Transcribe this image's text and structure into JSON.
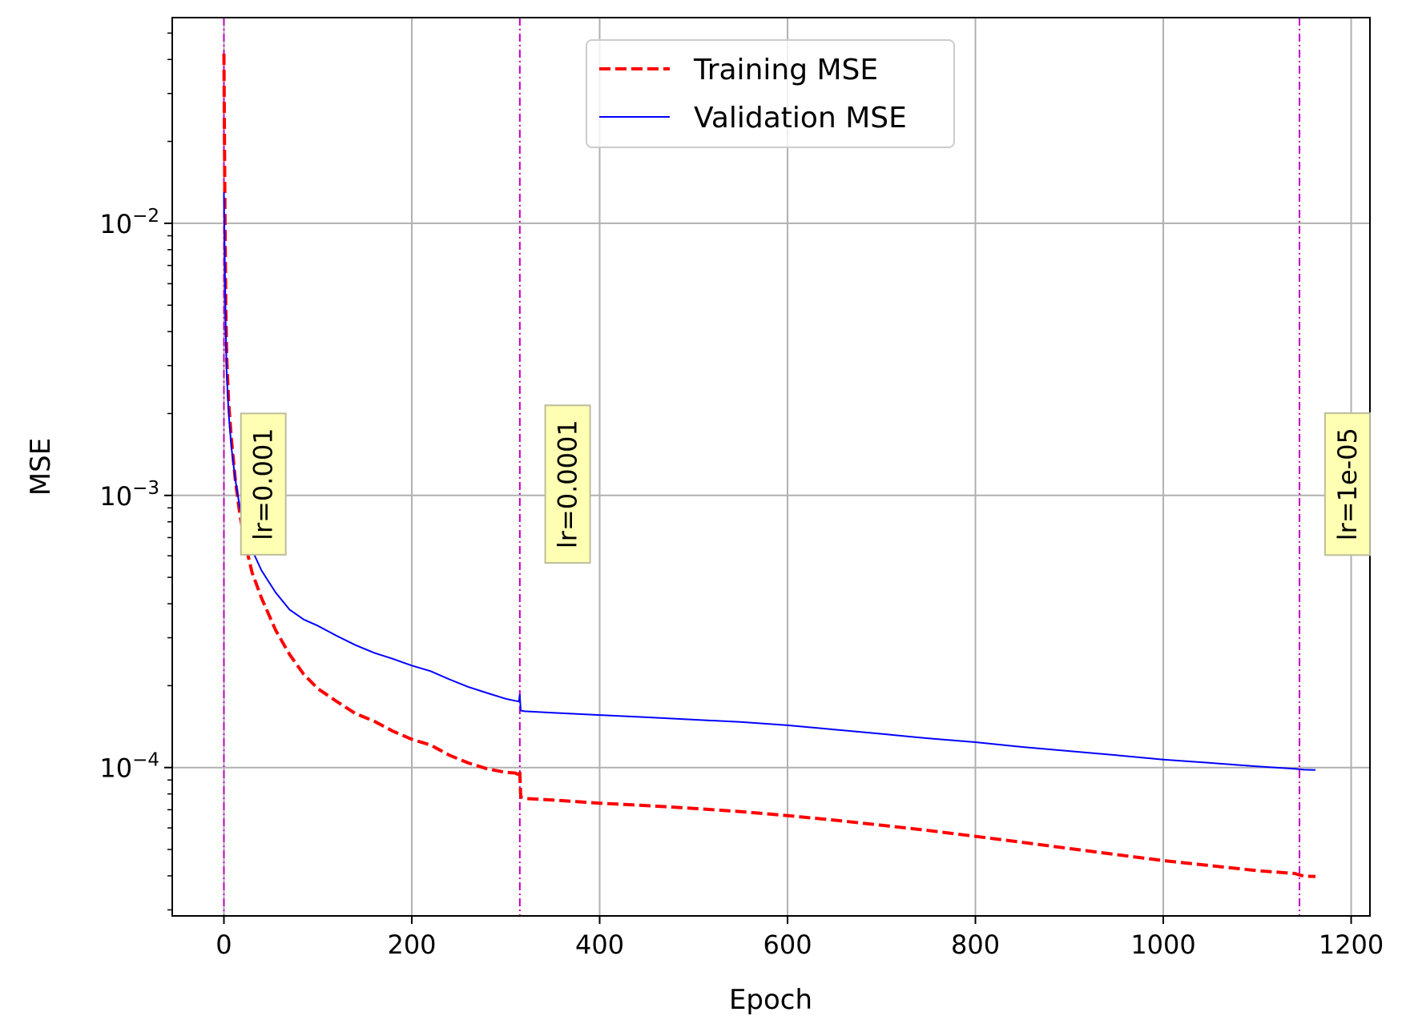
{
  "chart_data": {
    "type": "line",
    "xlabel": "Epoch",
    "ylabel": "MSE",
    "xlim": [
      -55,
      1220
    ],
    "ylim": [
      2.85e-05,
      0.057
    ],
    "yscale": "log",
    "grid": true,
    "legend_position": "top-center",
    "x_ticks": [
      0,
      200,
      400,
      600,
      800,
      1000,
      1200
    ],
    "x_tick_labels": [
      "0",
      "200",
      "400",
      "600",
      "800",
      "1000",
      "1200"
    ],
    "y_ticks": [
      0.0001,
      0.001,
      0.01
    ],
    "y_tick_labels": [
      {
        "base": "10",
        "exp": "−4"
      },
      {
        "base": "10",
        "exp": "−3"
      },
      {
        "base": "10",
        "exp": "−2"
      }
    ],
    "series": [
      {
        "name": "Training MSE",
        "color": "#ff0000",
        "style": "dashed",
        "x": [
          0,
          1,
          2,
          3,
          5,
          8,
          12,
          17,
          22,
          30,
          40,
          55,
          70,
          85,
          100,
          120,
          140,
          160,
          180,
          200,
          220,
          240,
          260,
          280,
          300,
          310,
          314,
          315,
          316,
          320,
          350,
          400,
          450,
          500,
          550,
          600,
          650,
          700,
          750,
          800,
          850,
          900,
          950,
          1000,
          1050,
          1100,
          1140,
          1145,
          1150,
          1162
        ],
        "y": [
          0.042,
          0.012,
          0.005,
          0.0032,
          0.0022,
          0.0016,
          0.00115,
          0.00085,
          0.00068,
          0.00052,
          0.00042,
          0.00032,
          0.00026,
          0.00022,
          0.000195,
          0.000175,
          0.000158,
          0.000148,
          0.000136,
          0.000127,
          0.000121,
          0.000111,
          0.000104,
          9.9e-05,
          9.6e-05,
          9.55e-05,
          9.4e-05,
          9.7e-05,
          7.8e-05,
          7.7e-05,
          7.6e-05,
          7.4e-05,
          7.25e-05,
          7.08e-05,
          6.89e-05,
          6.66e-05,
          6.41e-05,
          6.14e-05,
          5.87e-05,
          5.59e-05,
          5.31e-05,
          5.04e-05,
          4.79e-05,
          4.55e-05,
          4.36e-05,
          4.18e-05,
          4.08e-05,
          4.03e-05,
          3.99e-05,
          3.98e-05
        ]
      },
      {
        "name": "Validation MSE",
        "color": "#0000ff",
        "style": "solid",
        "x": [
          0,
          1,
          2,
          3,
          5,
          8,
          12,
          17,
          22,
          30,
          40,
          55,
          70,
          85,
          100,
          120,
          140,
          160,
          180,
          200,
          220,
          240,
          260,
          280,
          300,
          310,
          314,
          315,
          316,
          320,
          350,
          400,
          450,
          500,
          550,
          600,
          650,
          700,
          750,
          800,
          850,
          900,
          950,
          1000,
          1050,
          1100,
          1140,
          1145,
          1150,
          1162
        ],
        "y": [
          0.013,
          0.007,
          0.004,
          0.0028,
          0.002,
          0.0015,
          0.00115,
          0.0009,
          0.00075,
          0.00063,
          0.00053,
          0.00044,
          0.00038,
          0.00035,
          0.000332,
          0.000305,
          0.000282,
          0.000264,
          0.000251,
          0.000237,
          0.000226,
          0.000211,
          0.000198,
          0.000188,
          0.000179,
          0.000176,
          0.000175,
          0.000185,
          0.000162,
          0.000161,
          0.000159,
          0.000156,
          0.000153,
          0.00015,
          0.000147,
          0.000143,
          0.000138,
          0.000133,
          0.000128,
          0.000124,
          0.000119,
          0.000115,
          0.000111,
          0.000107,
          0.000104,
          0.000101,
          9.9e-05,
          9.85e-05,
          9.82e-05,
          9.8e-05
        ]
      }
    ],
    "annotations": [
      {
        "text": "lr=0.001",
        "x": 0,
        "label_x": 42,
        "label_y": 0.0011,
        "line_color": "#bf00bf"
      },
      {
        "text": "lr=0.0001",
        "x": 315,
        "label_x": 366,
        "label_y": 0.0011,
        "line_color": "#bf00bf"
      },
      {
        "text": "lr=1e-05",
        "x": 1145,
        "label_x": 1196,
        "label_y": 0.0011,
        "line_color": "#bf00bf"
      }
    ],
    "annotation_box_color": "#ffffb3"
  }
}
